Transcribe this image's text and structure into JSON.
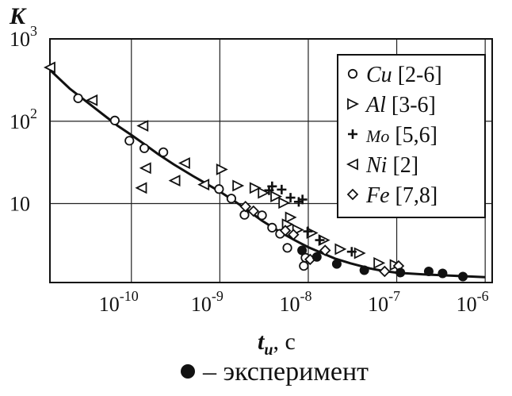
{
  "chart_data": {
    "type": "scatter",
    "ylabel": "K",
    "xlabel_main": "t",
    "xlabel_sub": "и",
    "xlabel_unit": ", с",
    "x_scale": "log",
    "y_scale": "log",
    "xlim": [
      1.2e-11,
      1.2e-06
    ],
    "ylim": [
      1.1,
      1000
    ],
    "grid": true,
    "legend_position": "top-right, inside",
    "x_ticks": [
      {
        "value": 1e-10,
        "base": "10",
        "exp": "-10"
      },
      {
        "value": 1e-09,
        "base": "10",
        "exp": "-9"
      },
      {
        "value": 1e-08,
        "base": "10",
        "exp": "-8"
      },
      {
        "value": 1e-07,
        "base": "10",
        "exp": "-7"
      },
      {
        "value": 1e-06,
        "base": "10",
        "exp": "-6"
      }
    ],
    "y_ticks": [
      {
        "value": 1000,
        "base": "10",
        "exp": "3"
      },
      {
        "value": 100,
        "base": "10",
        "exp": "2"
      },
      {
        "value": 10,
        "base": "10",
        "exp": ""
      }
    ],
    "series": [
      {
        "name": "Cu",
        "ref": "[2-6]",
        "marker": "circle-open",
        "points": [
          [
            2.5e-11,
            190
          ],
          [
            6.5e-11,
            102
          ],
          [
            9.5e-11,
            58
          ],
          [
            1.4e-10,
            47
          ],
          [
            2.3e-10,
            42
          ],
          [
            9.8e-10,
            15
          ],
          [
            1.35e-09,
            11.5
          ],
          [
            1.9e-09,
            7.3
          ],
          [
            3e-09,
            7.2
          ],
          [
            3.9e-09,
            5.1
          ],
          [
            4.8e-09,
            4.3
          ],
          [
            5.8e-09,
            2.9
          ],
          [
            8.9e-09,
            1.75
          ],
          [
            9.3e-09,
            2.2
          ]
        ]
      },
      {
        "name": "Al",
        "ref": "[3-6]",
        "marker": "triangle-right-open",
        "points": [
          [
            1.05e-09,
            26
          ],
          [
            1.6e-09,
            16.5
          ],
          [
            2.5e-09,
            15.5
          ],
          [
            3.1e-09,
            13.5
          ],
          [
            4.3e-09,
            12.2
          ],
          [
            5.3e-09,
            10.2
          ],
          [
            6.3e-09,
            6.8
          ],
          [
            5.8e-09,
            5.6
          ],
          [
            7.6e-09,
            4.8
          ],
          [
            1.1e-08,
            4.4
          ],
          [
            1.5e-08,
            3.6
          ],
          [
            2.3e-08,
            2.8
          ],
          [
            3.8e-08,
            2.5
          ],
          [
            6.3e-08,
            1.9
          ],
          [
            9.6e-08,
            1.8
          ]
        ]
      },
      {
        "name": "Mo",
        "ref": "[5,6]",
        "marker": "plus",
        "points": [
          [
            3.6e-09,
            14.5
          ],
          [
            3.9e-09,
            16.2
          ],
          [
            5e-09,
            14.8
          ],
          [
            6.3e-09,
            11.8
          ],
          [
            7.8e-09,
            10.5
          ],
          [
            8.6e-09,
            11.2
          ],
          [
            9.9e-09,
            4.6
          ],
          [
            1.35e-08,
            3.6
          ],
          [
            3.1e-08,
            2.6
          ]
        ]
      },
      {
        "name": "Ni",
        "ref": "[2]",
        "marker": "triangle-left-open",
        "points": [
          [
            1.2e-11,
            450
          ],
          [
            3.6e-11,
            180
          ],
          [
            1.35e-10,
            88
          ],
          [
            1.45e-10,
            27
          ],
          [
            1.3e-10,
            15.5
          ],
          [
            4e-10,
            31
          ],
          [
            3.1e-10,
            19
          ],
          [
            6.6e-10,
            17
          ]
        ]
      },
      {
        "name": "Fe",
        "ref": "[7,8]",
        "marker": "diamond-open",
        "points": [
          [
            1.95e-09,
            9.2
          ],
          [
            2.4e-09,
            8.1
          ],
          [
            5.5e-09,
            4.7
          ],
          [
            6.8e-09,
            4.2
          ],
          [
            1.05e-08,
            2.1
          ],
          [
            1.55e-08,
            2.7
          ],
          [
            7.3e-08,
            1.5
          ],
          [
            1.05e-07,
            1.75
          ]
        ]
      },
      {
        "name": "эксперимент",
        "marker": "filled-circle",
        "points": [
          [
            8.5e-09,
            2.7
          ],
          [
            1.25e-08,
            2.25
          ],
          [
            2.1e-08,
            1.85
          ],
          [
            4.3e-08,
            1.55
          ],
          [
            1.1e-07,
            1.45
          ],
          [
            2.3e-07,
            1.5
          ],
          [
            3.3e-07,
            1.42
          ],
          [
            5.6e-07,
            1.3
          ]
        ]
      },
      {
        "name": "fit",
        "marker": "line",
        "points": [
          [
            1.2e-11,
            420
          ],
          [
            2e-11,
            250
          ],
          [
            4e-11,
            140
          ],
          [
            7e-11,
            88
          ],
          [
            1e-10,
            68
          ],
          [
            1.5e-10,
            50
          ],
          [
            2e-10,
            40
          ],
          [
            3e-10,
            30
          ],
          [
            5e-10,
            21.5
          ],
          [
            7e-10,
            17.5
          ],
          [
            1e-09,
            14
          ],
          [
            1.5e-09,
            10.5
          ],
          [
            2e-09,
            8.5
          ],
          [
            3e-09,
            6.2
          ],
          [
            5e-09,
            4.4
          ],
          [
            7e-09,
            3.6
          ],
          [
            1e-08,
            2.95
          ],
          [
            1.5e-08,
            2.45
          ],
          [
            2e-08,
            2.15
          ],
          [
            3e-08,
            1.88
          ],
          [
            5e-08,
            1.63
          ],
          [
            7e-08,
            1.52
          ],
          [
            1e-07,
            1.45
          ],
          [
            2e-07,
            1.38
          ],
          [
            5e-07,
            1.32
          ],
          [
            1e-06,
            1.28
          ]
        ]
      }
    ],
    "legend_entries": [
      {
        "symbol": "○",
        "element": "Cu",
        "ref": "[2-6]"
      },
      {
        "symbol": "▹",
        "element": "Al",
        "ref": "[3-6]"
      },
      {
        "symbol": "+",
        "element": "Mo",
        "ref": "[5,6]"
      },
      {
        "symbol": "◃",
        "element": "Ni",
        "ref": "[2]"
      },
      {
        "symbol": "◇",
        "element": "Fe",
        "ref": "[7,8]"
      }
    ],
    "note": "– эксперимент"
  }
}
